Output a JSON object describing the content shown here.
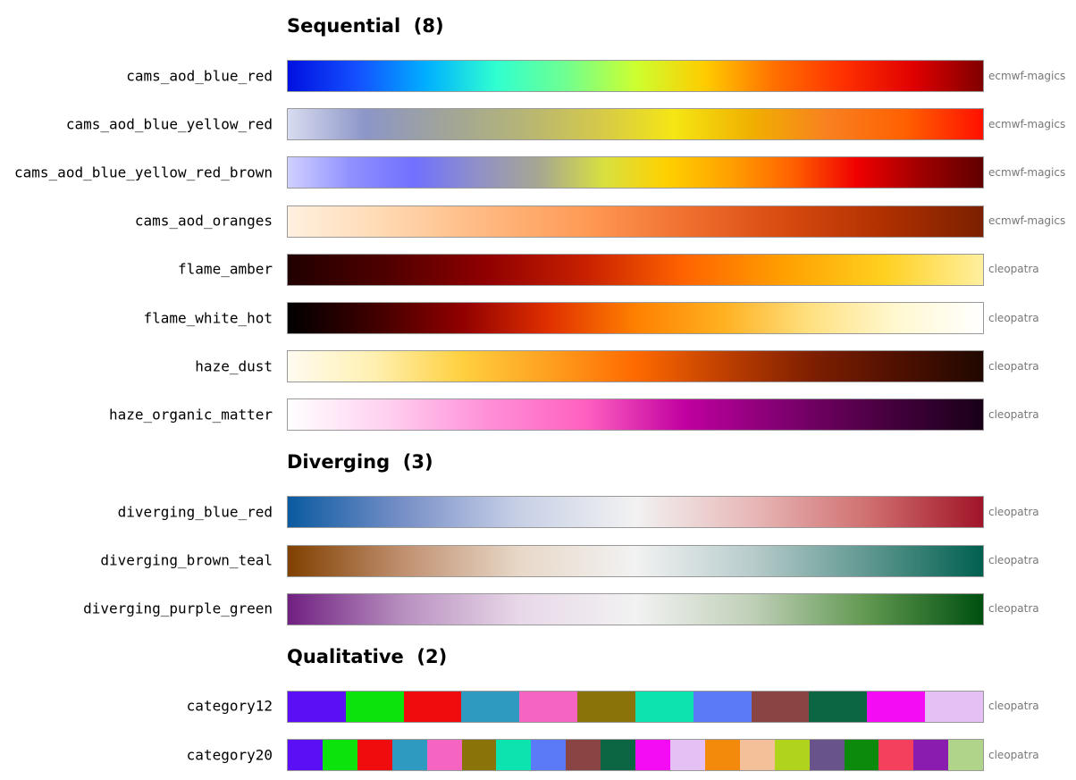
{
  "sections": [
    {
      "title": "Sequential  (8)",
      "discrete": false,
      "colormaps": [
        {
          "name": "cams_aod_blue_red",
          "source": "ecmwf-magics",
          "colors": [
            "#0010e0",
            "#1450ff",
            "#00b0ff",
            "#30ffd0",
            "#70ff90",
            "#ccff30",
            "#ffcc00",
            "#ff7000",
            "#ff3000",
            "#e00000",
            "#800000"
          ]
        },
        {
          "name": "cams_aod_blue_yellow_red",
          "source": "ecmwf-magics",
          "colors": [
            "#d8dcf0",
            "#8c96c8",
            "#a0a49a",
            "#b4b478",
            "#d4c84c",
            "#f5e614",
            "#f0b000",
            "#f88020",
            "#ff6000",
            "#ff1000"
          ]
        },
        {
          "name": "cams_aod_blue_yellow_red_brown",
          "source": "ecmwf-magics",
          "colors": [
            "#d0d0ff",
            "#9090ff",
            "#7070ff",
            "#9090c8",
            "#a8a890",
            "#d8e040",
            "#ffd000",
            "#ffa000",
            "#ff6000",
            "#f00000",
            "#a00000",
            "#600000"
          ]
        },
        {
          "name": "cams_aod_oranges",
          "source": "ecmwf-magics",
          "colors": [
            "#fff0e0",
            "#ffd8b0",
            "#ffb880",
            "#ff9a55",
            "#f07030",
            "#d84a10",
            "#b03000",
            "#7a2000"
          ]
        },
        {
          "name": "flame_amber",
          "source": "cleopatra",
          "colors": [
            "#200000",
            "#500000",
            "#900000",
            "#c82000",
            "#ff6400",
            "#ffa000",
            "#ffd020",
            "#fff0a0"
          ]
        },
        {
          "name": "flame_white_hot",
          "source": "cleopatra",
          "colors": [
            "#000000",
            "#400000",
            "#900000",
            "#e03000",
            "#ff8000",
            "#ffb020",
            "#ffe080",
            "#fff8d0",
            "#ffffff"
          ]
        },
        {
          "name": "haze_dust",
          "source": "cleopatra",
          "colors": [
            "#fffbf0",
            "#fff0b0",
            "#ffd040",
            "#ffa020",
            "#ff6a00",
            "#c04000",
            "#802000",
            "#501000",
            "#200800"
          ]
        },
        {
          "name": "haze_organic_matter",
          "source": "cleopatra",
          "colors": [
            "#ffffff",
            "#ffd0f0",
            "#ff90d8",
            "#ff60c0",
            "#c000a0",
            "#800070",
            "#480040",
            "#180018"
          ]
        }
      ]
    },
    {
      "title": "Diverging  (3)",
      "discrete": false,
      "colormaps": [
        {
          "name": "diverging_blue_red",
          "source": "cleopatra",
          "colors": [
            "#0a5aa0",
            "#7890c8",
            "#c8d0e6",
            "#f2f2f2",
            "#e8b8b8",
            "#d07070",
            "#a01428"
          ]
        },
        {
          "name": "diverging_brown_teal",
          "source": "cleopatra",
          "colors": [
            "#804000",
            "#c09070",
            "#e8d8c8",
            "#f2f2f2",
            "#b8cccc",
            "#609890",
            "#006050"
          ]
        },
        {
          "name": "diverging_purple_green",
          "source": "cleopatra",
          "colors": [
            "#702080",
            "#b890c0",
            "#e8d8e8",
            "#f2f2f2",
            "#c0d0b8",
            "#609850",
            "#005010"
          ]
        }
      ]
    },
    {
      "title": "Qualitative  (2)",
      "discrete": true,
      "colormaps": [
        {
          "name": "category12",
          "source": "cleopatra",
          "colors": [
            "#5b0ff5",
            "#0ce30c",
            "#f00c0c",
            "#2f9ac0",
            "#f464c0",
            "#8a7308",
            "#0ce4b0",
            "#5a7af8",
            "#8b4444",
            "#0c6644",
            "#f40cf4",
            "#e4c0f4"
          ]
        },
        {
          "name": "category20",
          "source": "cleopatra",
          "colors": [
            "#5b0ff5",
            "#0ce30c",
            "#f00c0c",
            "#2f9ac0",
            "#f464c0",
            "#8a7308",
            "#0ce4b0",
            "#5a7af8",
            "#8b4444",
            "#0c6644",
            "#f40cf4",
            "#e4c0f4",
            "#f48a0c",
            "#f4c09a",
            "#b0d41c",
            "#68548a",
            "#0c8a0c",
            "#f4405c",
            "#8a1cb0",
            "#b0d48a"
          ]
        }
      ]
    }
  ]
}
